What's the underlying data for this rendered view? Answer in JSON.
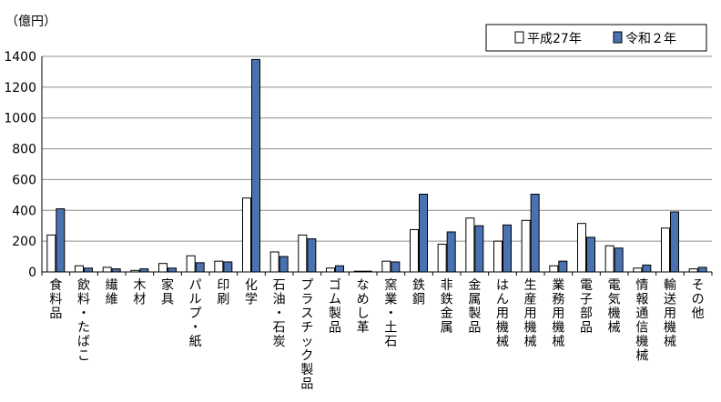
{
  "chart_data": {
    "type": "bar",
    "unit_label": "（億円）",
    "ylim": [
      0,
      1400
    ],
    "yticks": [
      "0",
      "200",
      "400",
      "600",
      "800",
      "1000",
      "1200",
      "1400"
    ],
    "ytick_values": [
      0,
      200,
      400,
      600,
      800,
      1000,
      1200,
      1400
    ],
    "grid": true,
    "legend_position": "top-right",
    "categories": [
      "食料品",
      "飲料・たばこ",
      "繊維",
      "木材",
      "家具",
      "パルプ・紙",
      "印刷",
      "化学",
      "石油・石炭",
      "プラスチック製品",
      "ゴム製品",
      "なめし革",
      "窯業・土石",
      "鉄鋼",
      "非鉄金属",
      "金属製品",
      "はん用機械",
      "生産用機械",
      "業務用機械",
      "電子部品",
      "電気機械",
      "情報通信機械",
      "輸送用機械",
      "その他"
    ],
    "series": [
      {
        "name": "平成27年",
        "color": "#ffffff",
        "values": [
          240,
          40,
          30,
          10,
          55,
          105,
          70,
          480,
          130,
          240,
          25,
          5,
          70,
          275,
          180,
          350,
          200,
          335,
          40,
          315,
          170,
          25,
          285,
          20
        ]
      },
      {
        "name": "令和２年",
        "color": "#4a72b0",
        "values": [
          410,
          25,
          20,
          20,
          25,
          60,
          65,
          1380,
          100,
          215,
          40,
          5,
          65,
          505,
          260,
          300,
          305,
          505,
          70,
          225,
          155,
          45,
          390,
          30
        ]
      }
    ]
  }
}
